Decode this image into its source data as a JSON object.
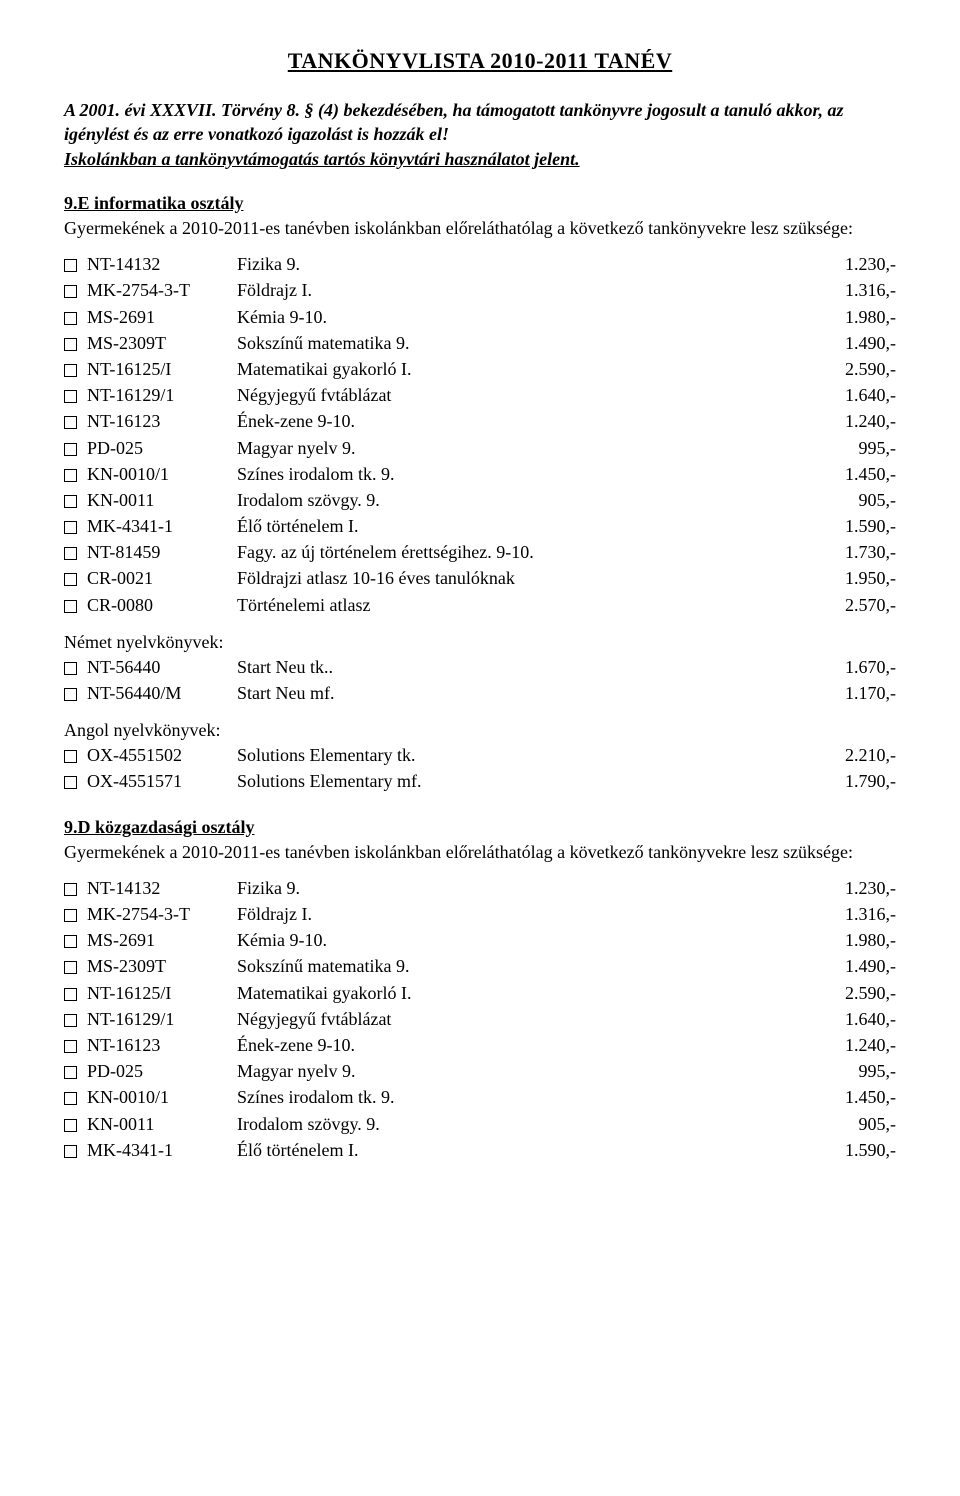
{
  "title": "TANKÖNYVLISTA    2010-2011 TANÉV",
  "intro_bold_ital": "A 2001. évi XXXVII. Törvény 8. § (4) bekezdésében, ha támogatott tankönyvre jogosult a tanuló akkor, az igénylést és az erre vonatkozó igazolást is hozzák el!",
  "intro_uline_ital": "Iskolánkban a tankönyvtámogatás tartós könyvtári használatot jelent.",
  "section_sub": "Gyermekének a 2010-2011-es tanévben iskolánkban előreláthatólag a következő tankönyvekre lesz szüksége:",
  "sections": [
    {
      "heading": "9.E informatika osztály",
      "books": [
        {
          "code": "NT-14132",
          "title": "Fizika 9.",
          "price": "1.230,-"
        },
        {
          "code": "MK-2754-3-T",
          "title": "Földrajz I.",
          "price": "1.316,-"
        },
        {
          "code": "MS-2691",
          "title": "Kémia 9-10.",
          "price": "1.980,-"
        },
        {
          "code": "MS-2309T",
          "title": "Sokszínű matematika 9.",
          "price": "1.490,-"
        },
        {
          "code": "NT-16125/I",
          "title": "Matematikai gyakorló I.",
          "price": "2.590,-"
        },
        {
          "code": "NT-16129/1",
          "title": "Négyjegyű fvtáblázat",
          "price": "1.640,-"
        },
        {
          "code": "NT-16123",
          "title": "Ének-zene 9-10.",
          "price": "1.240,-"
        },
        {
          "code": "PD-025",
          "title": "Magyar nyelv 9.",
          "price": "995,-"
        },
        {
          "code": "KN-0010/1",
          "title": "Színes irodalom tk. 9.",
          "price": "1.450,-"
        },
        {
          "code": "KN-0011",
          "title": "Irodalom szövgy. 9.",
          "price": "905,-"
        },
        {
          "code": "MK-4341-1",
          "title": "Élő történelem I.",
          "price": "1.590,-"
        },
        {
          "code": "NT-81459",
          "title": "Fagy. az új történelem érettségihez. 9-10.",
          "price": "1.730,-"
        },
        {
          "code": "CR-0021",
          "title": "Földrajzi atlasz 10-16 éves tanulóknak",
          "price": "1.950,-"
        },
        {
          "code": "CR-0080",
          "title": "Történelemi atlasz",
          "price": "2.570,-"
        }
      ],
      "groups": [
        {
          "label": "Német nyelvkönyvek:",
          "books": [
            {
              "code": "NT-56440",
              "title": "Start Neu tk..",
              "price": "1.670,-"
            },
            {
              "code": "NT-56440/M",
              "title": "Start Neu mf.",
              "price": "1.170,-"
            }
          ]
        },
        {
          "label": "Angol nyelvkönyvek:",
          "books": [
            {
              "code": "OX-4551502",
              "title": "Solutions Elementary tk.",
              "price": "2.210,-"
            },
            {
              "code": "OX-4551571",
              "title": "Solutions Elementary mf.",
              "price": "1.790,-"
            }
          ]
        }
      ]
    },
    {
      "heading": "9.D közgazdasági osztály",
      "books": [
        {
          "code": "NT-14132",
          "title": "Fizika 9.",
          "price": "1.230,-"
        },
        {
          "code": "MK-2754-3-T",
          "title": "Földrajz I.",
          "price": "1.316,-"
        },
        {
          "code": "MS-2691",
          "title": "Kémia 9-10.",
          "price": "1.980,-"
        },
        {
          "code": "MS-2309T",
          "title": "Sokszínű matematika 9.",
          "price": "1.490,-"
        },
        {
          "code": "NT-16125/I",
          "title": "Matematikai gyakorló I.",
          "price": "2.590,-"
        },
        {
          "code": "NT-16129/1",
          "title": "Négyjegyű fvtáblázat",
          "price": "1.640,-"
        },
        {
          "code": "NT-16123",
          "title": "Ének-zene 9-10.",
          "price": "1.240,-"
        },
        {
          "code": "PD-025",
          "title": "Magyar nyelv 9.",
          "price": "995,-"
        },
        {
          "code": "KN-0010/1",
          "title": "Színes irodalom tk. 9.",
          "price": "1.450,-"
        },
        {
          "code": "KN-0011",
          "title": "Irodalom szövgy. 9.",
          "price": "905,-"
        },
        {
          "code": "MK-4341-1",
          "title": "Élő történelem I.",
          "price": "1.590,-"
        }
      ],
      "groups": []
    }
  ]
}
